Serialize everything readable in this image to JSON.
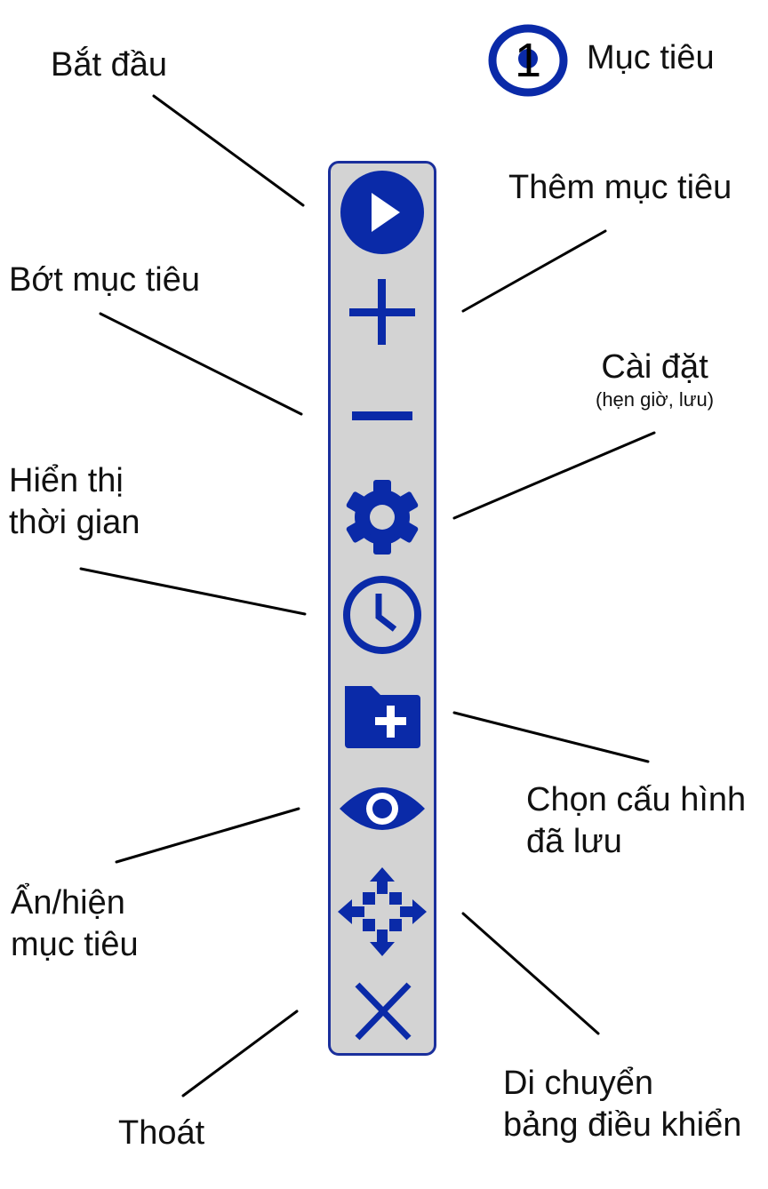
{
  "legend": {
    "number": "1",
    "label": "Mục tiêu"
  },
  "labels": {
    "start": "Bắt đầu",
    "add_target": "Thêm mục tiêu",
    "remove_target": "Bớt mục tiêu",
    "settings": "Cài đặt",
    "settings_note": "(hẹn giờ, lưu)",
    "show_time_1": "Hiển thị",
    "show_time_2": "thời gian",
    "load_config_1": "Chọn cấu hình",
    "load_config_2": "đã lưu",
    "toggle_targets_1": "Ẩn/hiện",
    "toggle_targets_2": "mục tiêu",
    "move_panel_1": "Di chuyển",
    "move_panel_2": "bảng điều khiển",
    "exit": "Thoát"
  },
  "panel_buttons": [
    {
      "icon": "play-icon"
    },
    {
      "icon": "plus-icon"
    },
    {
      "icon": "minus-icon"
    },
    {
      "icon": "gear-icon"
    },
    {
      "icon": "clock-icon"
    },
    {
      "icon": "folder-add-icon"
    },
    {
      "icon": "eye-icon"
    },
    {
      "icon": "move-arrows-icon"
    },
    {
      "icon": "close-icon"
    }
  ],
  "colors": {
    "accent": "#0a2aa8",
    "panel_bg": "#d3d3d3",
    "panel_border": "#1a2f9c",
    "leader_line": "#000000",
    "text": "#111111"
  }
}
